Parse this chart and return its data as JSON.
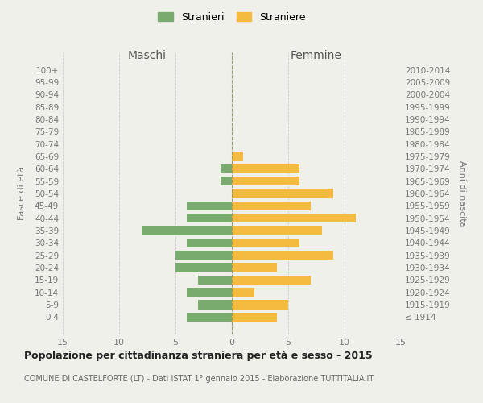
{
  "age_groups": [
    "100+",
    "95-99",
    "90-94",
    "85-89",
    "80-84",
    "75-79",
    "70-74",
    "65-69",
    "60-64",
    "55-59",
    "50-54",
    "45-49",
    "40-44",
    "35-39",
    "30-34",
    "25-29",
    "20-24",
    "15-19",
    "10-14",
    "5-9",
    "0-4"
  ],
  "birth_years": [
    "≤ 1914",
    "1915-1919",
    "1920-1924",
    "1925-1929",
    "1930-1934",
    "1935-1939",
    "1940-1944",
    "1945-1949",
    "1950-1954",
    "1955-1959",
    "1960-1964",
    "1965-1969",
    "1970-1974",
    "1975-1979",
    "1980-1984",
    "1985-1989",
    "1990-1994",
    "1995-1999",
    "2000-2004",
    "2005-2009",
    "2010-2014"
  ],
  "maschi": [
    0,
    0,
    0,
    0,
    0,
    0,
    0,
    0,
    1,
    1,
    0,
    4,
    4,
    8,
    4,
    5,
    5,
    3,
    4,
    3,
    4
  ],
  "femmine": [
    0,
    0,
    0,
    0,
    0,
    0,
    0,
    1,
    6,
    6,
    9,
    7,
    11,
    8,
    6,
    9,
    4,
    7,
    2,
    5,
    4
  ],
  "color_maschi": "#7aab6e",
  "color_femmine": "#f5bb40",
  "title": "Popolazione per cittadinanza straniera per età e sesso - 2015",
  "subtitle": "COMUNE DI CASTELFORTE (LT) - Dati ISTAT 1° gennaio 2015 - Elaborazione TUTTITALIA.IT",
  "ylabel_left": "Fasce di età",
  "ylabel_right": "Anni di nascita",
  "xlabel_maschi": "Maschi",
  "xlabel_femmine": "Femmine",
  "legend_maschi": "Stranieri",
  "legend_femmine": "Straniere",
  "xlim": 15,
  "background_color": "#f0f0eb"
}
